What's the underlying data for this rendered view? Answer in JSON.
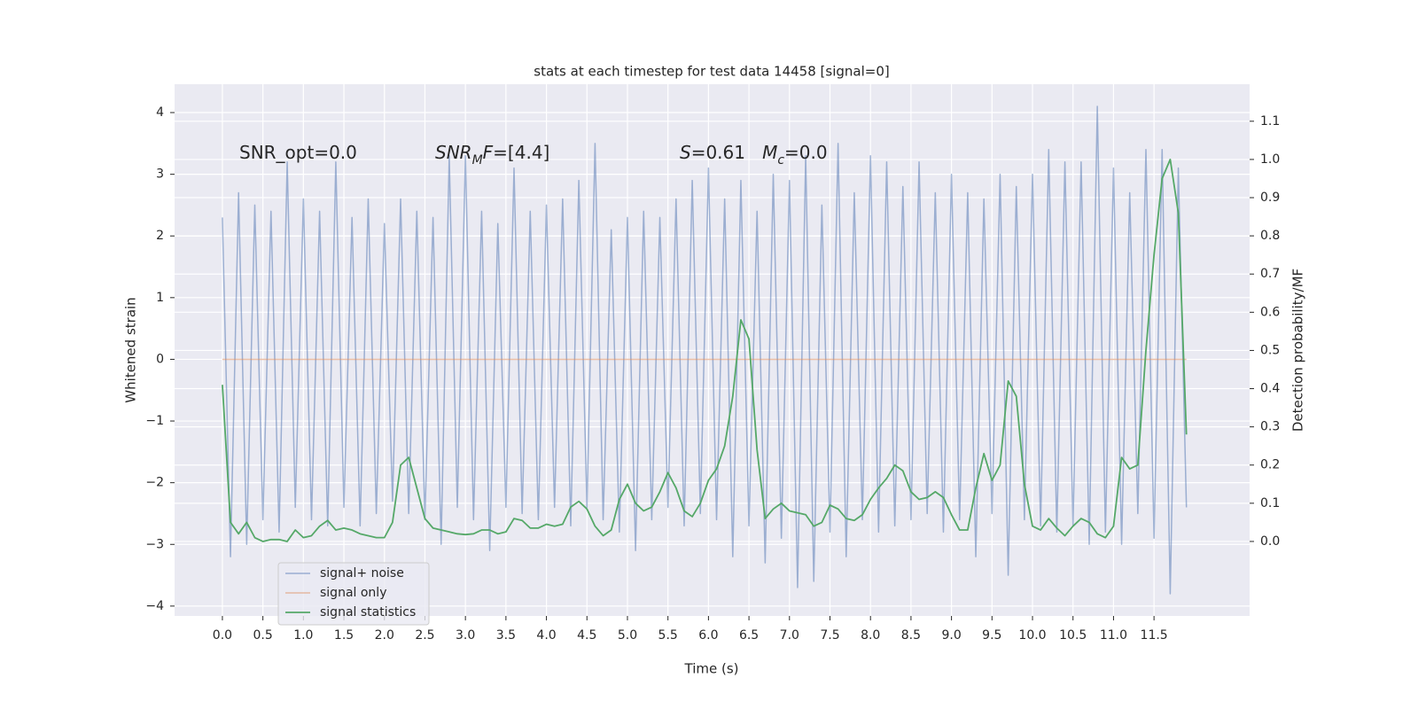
{
  "chart_data": {
    "type": "line",
    "title": "stats at each timestep for test data 14458 [signal=0]",
    "xlabel": "Time (s)",
    "ylabel": "Whitened strain",
    "y2label": "Detection probability/MF",
    "annotations": [
      [
        {
          "t": "SNR_opt=0.0"
        }
      ],
      [
        {
          "t": "SNR",
          "italic": true
        },
        {
          "t": "M",
          "italic": true,
          "sub": true
        },
        {
          "t": "F",
          "italic": true
        },
        {
          "t": "=[4.4]"
        }
      ],
      [
        {
          "t": "S",
          "italic": true
        },
        {
          "t": "=0.61   "
        },
        {
          "t": "M",
          "italic": true
        },
        {
          "t": "c",
          "italic": true,
          "sub": true
        },
        {
          "t": "=0.0"
        }
      ]
    ],
    "x": [
      0,
      0.1,
      0.2,
      0.3,
      0.4,
      0.5,
      0.6,
      0.7,
      0.8,
      0.9,
      1,
      1.1,
      1.2,
      1.3,
      1.4,
      1.5,
      1.6,
      1.7,
      1.8,
      1.9,
      2,
      2.1,
      2.2,
      2.3,
      2.4,
      2.5,
      2.6,
      2.7,
      2.8,
      2.9,
      3,
      3.1,
      3.2,
      3.3,
      3.4,
      3.5,
      3.6,
      3.7,
      3.8,
      3.9,
      4,
      4.1,
      4.2,
      4.3,
      4.4,
      4.5,
      4.6,
      4.7,
      4.8,
      4.9,
      5,
      5.1,
      5.2,
      5.3,
      5.4,
      5.5,
      5.6,
      5.7,
      5.8,
      5.9,
      6,
      6.1,
      6.2,
      6.3,
      6.4,
      6.5,
      6.6,
      6.7,
      6.8,
      6.9,
      7,
      7.1,
      7.2,
      7.3,
      7.4,
      7.5,
      7.6,
      7.7,
      7.8,
      7.9,
      8,
      8.1,
      8.2,
      8.3,
      8.4,
      8.5,
      8.6,
      8.7,
      8.8,
      8.9,
      9,
      9.1,
      9.2,
      9.3,
      9.4,
      9.5,
      9.6,
      9.7,
      9.8,
      9.9,
      10,
      10.1,
      10.2,
      10.3,
      10.4,
      10.5,
      10.6,
      10.7,
      10.8,
      10.9,
      11,
      11.1,
      11.2,
      11.3,
      11.4,
      11.5,
      11.6,
      11.7,
      11.8,
      11.9
    ],
    "series": [
      {
        "name": "signal+ noise",
        "color": "#4c72b0",
        "values": [
          2.3,
          -3.2,
          2.7,
          -3.0,
          2.5,
          -2.6,
          2.4,
          -2.8,
          3.2,
          -2.4,
          2.6,
          -2.6,
          2.4,
          -2.7,
          3.2,
          -2.4,
          2.3,
          -2.7,
          2.6,
          -2.5,
          2.2,
          -2.3,
          2.6,
          -2.5,
          2.4,
          -2.6,
          2.3,
          -3.0,
          3.3,
          -2.4,
          3.3,
          -2.6,
          2.4,
          -3.1,
          2.2,
          -2.4,
          3.1,
          -2.5,
          2.4,
          -2.6,
          2.5,
          -2.4,
          2.6,
          -2.7,
          2.9,
          -2.4,
          3.5,
          -2.6,
          2.1,
          -2.8,
          2.3,
          -3.1,
          2.4,
          -2.6,
          2.3,
          -2.4,
          2.6,
          -2.7,
          2.9,
          -2.5,
          3.1,
          -2.6,
          2.6,
          -3.2,
          2.9,
          -2.7,
          2.4,
          -3.3,
          3.0,
          -2.9,
          2.9,
          -3.7,
          3.3,
          -3.6,
          2.5,
          -2.8,
          3.5,
          -3.2,
          2.7,
          -2.6,
          3.3,
          -2.8,
          3.2,
          -2.7,
          2.8,
          -2.6,
          3.2,
          -2.5,
          2.7,
          -2.8,
          3.0,
          -2.6,
          2.7,
          -3.2,
          2.6,
          -2.5,
          3.0,
          -3.5,
          2.8,
          -2.6,
          3.0,
          -2.7,
          3.4,
          -2.8,
          3.2,
          -2.7,
          3.2,
          -3.0,
          4.1,
          -2.8,
          3.1,
          -3.0,
          2.7,
          -2.5,
          3.4,
          -2.9,
          3.4,
          -3.8,
          3.1,
          -2.4
        ]
      },
      {
        "name": "signal only",
        "color": "#dd8452",
        "values": [
          0,
          0,
          0,
          0,
          0,
          0,
          0,
          0,
          0,
          0,
          0,
          0,
          0,
          0,
          0,
          0,
          0,
          0,
          0,
          0,
          0,
          0,
          0,
          0,
          0,
          0,
          0,
          0,
          0,
          0,
          0,
          0,
          0,
          0,
          0,
          0,
          0,
          0,
          0,
          0,
          0,
          0,
          0,
          0,
          0,
          0,
          0,
          0,
          0,
          0,
          0,
          0,
          0,
          0,
          0,
          0,
          0,
          0,
          0,
          0,
          0,
          0,
          0,
          0,
          0,
          0,
          0,
          0,
          0,
          0,
          0,
          0,
          0,
          0,
          0,
          0,
          0,
          0,
          0,
          0,
          0,
          0,
          0,
          0,
          0,
          0,
          0,
          0,
          0,
          0,
          0,
          0,
          0,
          0,
          0,
          0,
          0,
          0,
          0,
          0,
          0,
          0,
          0,
          0,
          0,
          0,
          0,
          0,
          0,
          0,
          0,
          0,
          0,
          0,
          0,
          0,
          0,
          0,
          0,
          0
        ]
      },
      {
        "name": "signal statistics",
        "color": "#55a868",
        "axis": "y2",
        "values": [
          0.41,
          0.05,
          0.02,
          0.05,
          0.01,
          0.0,
          0.005,
          0.005,
          0.0,
          0.03,
          0.01,
          0.015,
          0.04,
          0.055,
          0.03,
          0.035,
          0.03,
          0.02,
          0.015,
          0.01,
          0.01,
          0.05,
          0.2,
          0.22,
          0.14,
          0.06,
          0.035,
          0.03,
          0.025,
          0.02,
          0.018,
          0.02,
          0.03,
          0.03,
          0.02,
          0.025,
          0.06,
          0.055,
          0.035,
          0.035,
          0.045,
          0.04,
          0.045,
          0.09,
          0.105,
          0.085,
          0.04,
          0.015,
          0.03,
          0.11,
          0.15,
          0.1,
          0.08,
          0.09,
          0.13,
          0.18,
          0.14,
          0.08,
          0.065,
          0.1,
          0.16,
          0.19,
          0.25,
          0.38,
          0.58,
          0.53,
          0.24,
          0.06,
          0.085,
          0.1,
          0.08,
          0.075,
          0.07,
          0.04,
          0.05,
          0.095,
          0.085,
          0.06,
          0.055,
          0.07,
          0.11,
          0.14,
          0.165,
          0.2,
          0.185,
          0.13,
          0.11,
          0.115,
          0.13,
          0.115,
          0.07,
          0.03,
          0.03,
          0.14,
          0.23,
          0.16,
          0.2,
          0.42,
          0.38,
          0.15,
          0.04,
          0.03,
          0.06,
          0.035,
          0.015,
          0.04,
          0.06,
          0.05,
          0.02,
          0.01,
          0.04,
          0.22,
          0.19,
          0.2,
          0.5,
          0.75,
          0.95,
          1.0,
          0.86,
          0.28
        ]
      }
    ],
    "xlim": [
      -0.59,
      12.68
    ],
    "xticks": [
      {
        "value": 0,
        "label": "0.0"
      },
      0.5,
      {
        "value": 1,
        "label": "1.0"
      },
      1.5,
      {
        "value": 2,
        "label": "2.0"
      },
      2.5,
      {
        "value": 3,
        "label": "3.0"
      },
      3.5,
      {
        "value": 4,
        "label": "4.0"
      },
      4.5,
      {
        "value": 5,
        "label": "5.0"
      },
      5.5,
      {
        "value": 6,
        "label": "6.0"
      },
      6.5,
      {
        "value": 7,
        "label": "7.0"
      },
      7.5,
      {
        "value": 8,
        "label": "8.0"
      },
      8.5,
      {
        "value": 9,
        "label": "9.0"
      },
      9.5,
      {
        "value": 10,
        "label": "10.0"
      },
      10.5,
      {
        "value": 11,
        "label": "11.0"
      },
      11.5
    ],
    "ylim": [
      -4.16,
      4.46
    ],
    "yticks": [
      {
        "value": -4,
        "label": "−4"
      },
      {
        "value": -3,
        "label": "−3"
      },
      {
        "value": -2,
        "label": "−2"
      },
      {
        "value": -1,
        "label": "−1"
      },
      0,
      1,
      2,
      3,
      4
    ],
    "y2lim": [
      -0.195,
      1.197
    ],
    "y2ticks": [
      {
        "value": 0,
        "label": "0.0"
      },
      0.1,
      0.2,
      0.3,
      0.4,
      0.5,
      0.6,
      0.7,
      0.8,
      0.9,
      {
        "value": 1,
        "label": "1.0"
      },
      1.1
    ],
    "grid": true,
    "legend": "lower left"
  }
}
